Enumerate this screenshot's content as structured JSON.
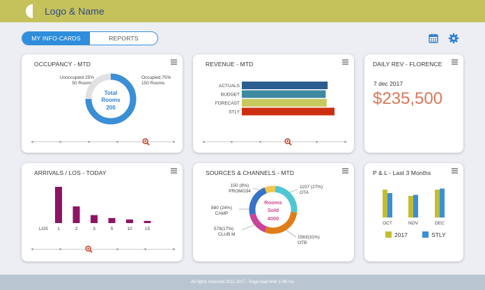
{
  "header": {
    "brand": "Logo & Name"
  },
  "tabs": [
    {
      "label": "MY INFO-CARDS"
    },
    {
      "label": "REPORTS"
    }
  ],
  "colors": {
    "header": "#c5c25b",
    "accent": "#2f8ddb",
    "revenue": "#d9775a",
    "maroon": "#8e1463"
  },
  "occupancy": {
    "title": "OCCUPANCY - MTD",
    "left_label_1": "Unoccupied 25%",
    "left_label_2": "50 Rooms",
    "right_label_1": "Occupied 75%",
    "right_label_2": "150 Rooms",
    "center_1": "Total",
    "center_2": "Rooms",
    "center_3": "200",
    "chart_data": {
      "type": "pie",
      "segments": [
        {
          "label": "Occupied",
          "value": 75
        },
        {
          "label": "Unoccupied",
          "value": 25
        }
      ]
    }
  },
  "revenue": {
    "title": "REVENUE - MTD",
    "chart_data": {
      "type": "bar",
      "orientation": "horizontal",
      "categories": [
        "ACTUALS",
        "BUDGET",
        "FORECAST",
        "STLY"
      ],
      "values": [
        88,
        86,
        87,
        95
      ],
      "colors": [
        "#2c5d8f",
        "#3f8aa0",
        "#c7c85e",
        "#cc2f10"
      ]
    }
  },
  "daily": {
    "title": "DAILY REV - FLORENCE",
    "date": "7 dec 2017",
    "value": "$235,500"
  },
  "arrivals": {
    "title": "ARRIVALS / LOS - TODAY",
    "los_label": "LOS",
    "chart_data": {
      "type": "bar",
      "categories": [
        "1",
        "2",
        "3",
        "5",
        "10",
        "15"
      ],
      "values": [
        100,
        46,
        22,
        14,
        10,
        6
      ]
    }
  },
  "sources": {
    "title": "SOURCES & CHANNELS - MTD",
    "center_1": "Rooms",
    "center_2": "Sold",
    "center_3": "4000",
    "labels": {
      "promo_1": "150 (8%)",
      "promo_2": "PROMO34",
      "camp_1": "880 (24%)",
      "camp_2": "CAMP",
      "club_1": "578(17%)",
      "club_2": "CLUB M",
      "ota_1": "1107 (27%)",
      "ota_2": "OTA",
      "otb_1": "1563(31%)",
      "otb_2": "OTB"
    },
    "chart_data": {
      "type": "pie",
      "segments": [
        {
          "label": "OTA",
          "value": 27,
          "color": "#4fc6d3"
        },
        {
          "label": "OTB",
          "value": 31,
          "color": "#e07d17"
        },
        {
          "label": "CLUB M",
          "value": 17,
          "color": "#c9439b"
        },
        {
          "label": "CAMP",
          "value": 24,
          "color": "#3773c7"
        },
        {
          "label": "PROMO34",
          "value": 8,
          "color": "#f2c64c"
        }
      ]
    }
  },
  "pl": {
    "title": "P & L - Last 3 Months",
    "chart_data": {
      "type": "bar",
      "categories": [
        "OCT",
        "NOV",
        "DEC"
      ],
      "series": [
        {
          "name": "2017",
          "values": [
            80,
            62,
            80
          ],
          "color": "#c3bd32"
        },
        {
          "name": "STLY",
          "values": [
            70,
            65,
            83
          ],
          "color": "#3a8fd6"
        }
      ]
    }
  },
  "footer": {
    "text": "All rights reserved 2011-2017 - Page load time 1740 ms"
  }
}
